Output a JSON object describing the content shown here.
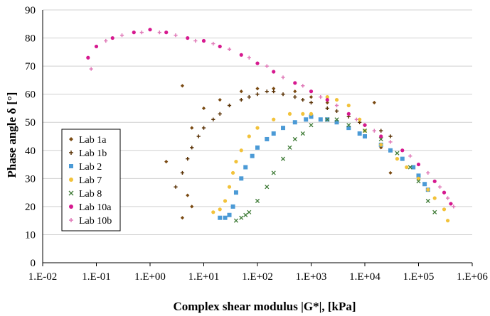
{
  "chart_data": {
    "type": "scatter",
    "title": "",
    "xlabel": "Complex shear modulus |G*|, [kPa]",
    "ylabel": "Phase angle δ [°]",
    "x_scale": "log",
    "xlim": [
      0.01,
      1000000
    ],
    "ylim": [
      0,
      90
    ],
    "x_ticks": [
      "1.E-02",
      "1.E-01",
      "1.E+00",
      "1.E+01",
      "1.E+02",
      "1.E+03",
      "1.E+04",
      "1.E+05",
      "1.E+06"
    ],
    "y_ticks": [
      0,
      10,
      20,
      30,
      40,
      50,
      60,
      70,
      80,
      90
    ],
    "grid": "horizontal",
    "legend_position": "left",
    "series": [
      {
        "name": "Lab 1a",
        "color": "#7a4a12",
        "marker": "diamond",
        "points": [
          [
            2.0,
            36
          ],
          [
            4.0,
            63
          ],
          [
            6.0,
            48
          ],
          [
            10,
            55
          ],
          [
            20,
            58
          ],
          [
            50,
            61
          ],
          [
            100,
            62
          ],
          [
            200,
            62
          ],
          [
            500,
            61
          ],
          [
            1000,
            59
          ],
          [
            2000,
            57
          ],
          [
            5000,
            53
          ],
          [
            10000,
            49
          ],
          [
            15000,
            57
          ],
          [
            20000,
            41
          ],
          [
            30000,
            32
          ],
          [
            4,
            16
          ],
          [
            6,
            20
          ],
          [
            5,
            24
          ]
        ]
      },
      {
        "name": "Lab 1b",
        "color": "#5a3205",
        "marker": "plus",
        "points": [
          [
            3,
            27
          ],
          [
            4,
            32
          ],
          [
            5,
            37
          ],
          [
            6,
            41
          ],
          [
            8,
            45
          ],
          [
            10,
            48
          ],
          [
            15,
            51
          ],
          [
            20,
            53
          ],
          [
            30,
            56
          ],
          [
            50,
            58
          ],
          [
            70,
            59
          ],
          [
            100,
            60
          ],
          [
            150,
            61
          ],
          [
            200,
            61
          ],
          [
            300,
            60
          ],
          [
            500,
            59
          ],
          [
            700,
            58
          ],
          [
            1000,
            57
          ],
          [
            2000,
            55
          ],
          [
            3000,
            54
          ],
          [
            5000,
            52
          ],
          [
            8000,
            50
          ],
          [
            10000,
            49
          ],
          [
            20000,
            47
          ],
          [
            30000,
            45
          ]
        ]
      },
      {
        "name": "Lab 2",
        "color": "#4b9ad6",
        "marker": "square",
        "points": [
          [
            20,
            16
          ],
          [
            25,
            16
          ],
          [
            30,
            17
          ],
          [
            35,
            20
          ],
          [
            40,
            25
          ],
          [
            50,
            30
          ],
          [
            60,
            34
          ],
          [
            80,
            38
          ],
          [
            100,
            41
          ],
          [
            150,
            44
          ],
          [
            200,
            46
          ],
          [
            300,
            48
          ],
          [
            500,
            50
          ],
          [
            800,
            51
          ],
          [
            1000,
            52
          ],
          [
            1500,
            51
          ],
          [
            2000,
            51
          ],
          [
            3000,
            50
          ],
          [
            5000,
            48
          ],
          [
            8000,
            46
          ],
          [
            10000,
            45
          ],
          [
            20000,
            42
          ],
          [
            30000,
            40
          ],
          [
            50000,
            37
          ],
          [
            80000,
            34
          ],
          [
            100000,
            31
          ],
          [
            130000,
            28
          ],
          [
            150000,
            26
          ]
        ]
      },
      {
        "name": "Lab 7",
        "color": "#f2c23a",
        "marker": "dot",
        "points": [
          [
            15,
            18
          ],
          [
            20,
            19
          ],
          [
            25,
            22
          ],
          [
            30,
            27
          ],
          [
            35,
            32
          ],
          [
            40,
            36
          ],
          [
            50,
            40
          ],
          [
            70,
            45
          ],
          [
            100,
            48
          ],
          [
            200,
            51
          ],
          [
            400,
            53
          ],
          [
            700,
            53
          ],
          [
            1000,
            53
          ],
          [
            2000,
            59
          ],
          [
            3000,
            58
          ],
          [
            5000,
            56
          ],
          [
            8000,
            51
          ],
          [
            10000,
            47
          ],
          [
            20000,
            42
          ],
          [
            40000,
            37
          ],
          [
            60000,
            34
          ],
          [
            100000,
            30
          ],
          [
            150000,
            26
          ],
          [
            200000,
            23
          ],
          [
            300000,
            19
          ],
          [
            350000,
            15
          ]
        ]
      },
      {
        "name": "Lab 8",
        "color": "#3d7a35",
        "marker": "cross",
        "points": [
          [
            40,
            15
          ],
          [
            50,
            16
          ],
          [
            60,
            17
          ],
          [
            70,
            18
          ],
          [
            100,
            22
          ],
          [
            150,
            27
          ],
          [
            200,
            32
          ],
          [
            300,
            37
          ],
          [
            400,
            41
          ],
          [
            500,
            44
          ],
          [
            700,
            46
          ],
          [
            1000,
            49
          ],
          [
            2000,
            51
          ],
          [
            3000,
            51
          ],
          [
            5000,
            49
          ],
          [
            10000,
            47
          ],
          [
            20000,
            44
          ],
          [
            40000,
            39
          ],
          [
            70000,
            34
          ],
          [
            100000,
            29
          ],
          [
            150000,
            22
          ],
          [
            200000,
            18
          ]
        ]
      },
      {
        "name": "Lab 10a",
        "color": "#d6198f",
        "marker": "dot",
        "points": [
          [
            0.07,
            73
          ],
          [
            0.1,
            77
          ],
          [
            0.2,
            80
          ],
          [
            0.5,
            82
          ],
          [
            1.0,
            83
          ],
          [
            2.0,
            82
          ],
          [
            5.0,
            80
          ],
          [
            10,
            79
          ],
          [
            20,
            77
          ],
          [
            50,
            74
          ],
          [
            100,
            71
          ],
          [
            200,
            68
          ],
          [
            500,
            64
          ],
          [
            1000,
            61
          ],
          [
            2000,
            58
          ],
          [
            5000,
            53
          ],
          [
            10000,
            49
          ],
          [
            20000,
            45
          ],
          [
            50000,
            40
          ],
          [
            100000,
            35
          ],
          [
            200000,
            29
          ],
          [
            300000,
            25
          ],
          [
            400000,
            21
          ]
        ]
      },
      {
        "name": "Lab 10b",
        "color": "#e07ab8",
        "marker": "plus",
        "points": [
          [
            0.08,
            69
          ],
          [
            0.15,
            79
          ],
          [
            0.3,
            81
          ],
          [
            0.7,
            82
          ],
          [
            1.5,
            82
          ],
          [
            3,
            81
          ],
          [
            7,
            79
          ],
          [
            15,
            78
          ],
          [
            30,
            76
          ],
          [
            70,
            73
          ],
          [
            150,
            70
          ],
          [
            300,
            66
          ],
          [
            700,
            63
          ],
          [
            1500,
            59
          ],
          [
            3000,
            56
          ],
          [
            7000,
            51
          ],
          [
            15000,
            47
          ],
          [
            30000,
            43
          ],
          [
            70000,
            38
          ],
          [
            150000,
            32
          ],
          [
            250000,
            27
          ],
          [
            350000,
            23
          ],
          [
            450000,
            20
          ]
        ]
      }
    ]
  }
}
